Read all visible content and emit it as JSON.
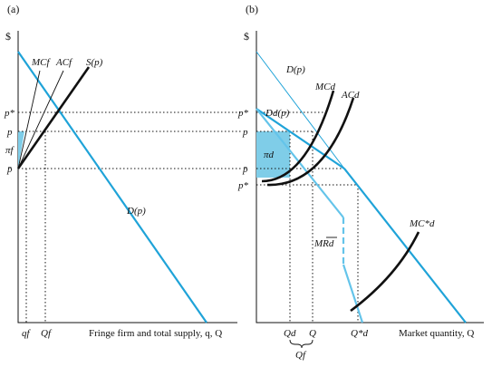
{
  "panel_a": {
    "panel_label": "(a)",
    "y_axis_label": "$",
    "x_axis_label": "Fringe firm and total supply, q, Q",
    "price_labels": {
      "p_star": "p*",
      "p": "p",
      "p_bar": "p̄",
      "pi_f": "πf"
    },
    "quantity_labels": {
      "q_f": "qf",
      "Q_f": "Qf"
    },
    "curve_labels": {
      "MC_f": "MCf",
      "AC_f": "ACf",
      "S_p": "S(p)",
      "D_p": "D(p)"
    }
  },
  "panel_b": {
    "panel_label": "(b)",
    "y_axis_label": "$",
    "x_axis_label": "Market quantity, Q",
    "price_labels": {
      "p_star": "p*",
      "p": "p",
      "p_bar": "p̄",
      "p_star_low": "p*"
    },
    "quantity_labels": {
      "Q_d": "Qd",
      "Q": "Q",
      "Q_f": "Qf",
      "Q_d_star": "Q*d"
    },
    "curve_labels": {
      "D_p": "D(p)",
      "D_d_p": "Dd(p)",
      "MC_d": "MCd",
      "AC_d": "ACd",
      "pi_d": "πd",
      "MR_d": "MRd",
      "MC_d_star": "MC*d"
    }
  },
  "colors": {
    "demand": "#1fa3d8",
    "marginal_revenue": "#64c4ea",
    "profit_area": "#7fcde8",
    "curves": "#111111"
  }
}
